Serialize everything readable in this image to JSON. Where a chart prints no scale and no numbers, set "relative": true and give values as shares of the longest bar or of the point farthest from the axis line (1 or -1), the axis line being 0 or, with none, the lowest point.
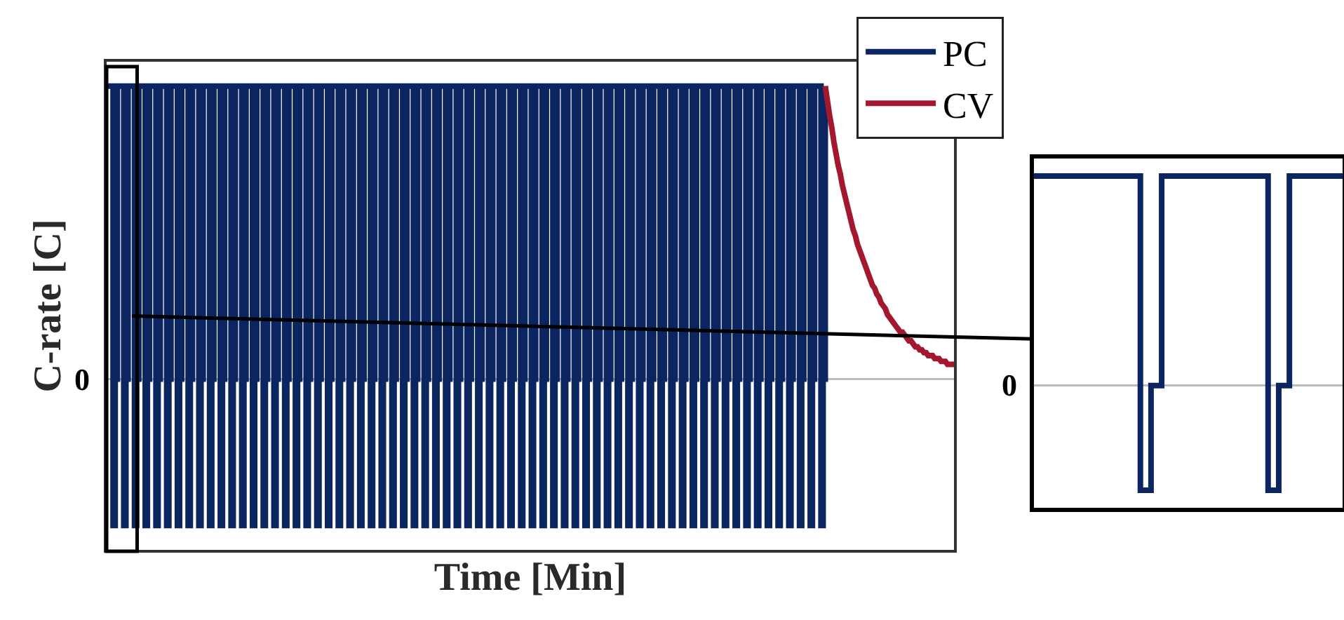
{
  "chart_data": [
    {
      "type": "step",
      "relative": true,
      "xlabel": "Time [Min]",
      "ylabel": "C-rate [C]",
      "annotations": [
        "0"
      ],
      "tick_labels": false,
      "legend": "top right",
      "marker": "none",
      "line_style": "solid",
      "categories": [
        null,
        null,
        null,
        null,
        null,
        null,
        null,
        null,
        null,
        null,
        null,
        null,
        null,
        null,
        null,
        null,
        null,
        null,
        null,
        null,
        null,
        null,
        null,
        null,
        null,
        null,
        null,
        null,
        null,
        null,
        null,
        null,
        null,
        null,
        null,
        null,
        null,
        null,
        null,
        null,
        null,
        null,
        null,
        null,
        null,
        null,
        null,
        null,
        null,
        null,
        null,
        null,
        null,
        null,
        null,
        null,
        null,
        null,
        null,
        null,
        null,
        null,
        null,
        null,
        null,
        null,
        null,
        null,
        null,
        null,
        null,
        null,
        null,
        null,
        null,
        null,
        null,
        null,
        null,
        null,
        null,
        null,
        null,
        null,
        null,
        null,
        null,
        null,
        null,
        null,
        null,
        null,
        null,
        null,
        null,
        null,
        null,
        null,
        null,
        null,
        null,
        null,
        null,
        null,
        null,
        null,
        null,
        null,
        null,
        null,
        null,
        null,
        null,
        null,
        null,
        null,
        null,
        null,
        null,
        null,
        null,
        null,
        null,
        null,
        null,
        null,
        null,
        null,
        null,
        null,
        null,
        null,
        null,
        null,
        null,
        null,
        null,
        null,
        null,
        null,
        null,
        null,
        null,
        null,
        null,
        null,
        null,
        null,
        null,
        null,
        null,
        null,
        null,
        null,
        null,
        null,
        null,
        null,
        null,
        null,
        null,
        null,
        null,
        null,
        null,
        null,
        null,
        null,
        null,
        null,
        null,
        null,
        null,
        null,
        null,
        null,
        null,
        null,
        null,
        null,
        null,
        null,
        null,
        null,
        null,
        null,
        null,
        null,
        null,
        null,
        null,
        null,
        null,
        null,
        null,
        null,
        null,
        null,
        null,
        null,
        null,
        null,
        null,
        null,
        null,
        null,
        null,
        null,
        null,
        null,
        null,
        null,
        null,
        null,
        null,
        null,
        null,
        null,
        null,
        null,
        null,
        null,
        null,
        null,
        null,
        null,
        null,
        null,
        null,
        null,
        null,
        null,
        null,
        null,
        null,
        null,
        null,
        null,
        null,
        null,
        null,
        null,
        null,
        null,
        null,
        null,
        null,
        null,
        null,
        null,
        null,
        null,
        null,
        null,
        null,
        null,
        null,
        null,
        null,
        null,
        null,
        null,
        null,
        null,
        null,
        null,
        null,
        null,
        null,
        null,
        null,
        null,
        null,
        null,
        null,
        null,
        null,
        null,
        null,
        null,
        null,
        null,
        null,
        null,
        null,
        null,
        null,
        null,
        null,
        null,
        null,
        null,
        null,
        null,
        null,
        null,
        null,
        null,
        null,
        null,
        null,
        null,
        null,
        null,
        null,
        null,
        null,
        null,
        null,
        null,
        null,
        null,
        null,
        null,
        null,
        null,
        null,
        null,
        null,
        null,
        null,
        null,
        null,
        null,
        null,
        null,
        null,
        null,
        null,
        null,
        null,
        null,
        null,
        null,
        null,
        null,
        null,
        null,
        null,
        null,
        null,
        null,
        null,
        null,
        null,
        null,
        null,
        null,
        null,
        null,
        null,
        null,
        null,
        null,
        null,
        null,
        null,
        null,
        null,
        null,
        null,
        null,
        null,
        null,
        null,
        null,
        null,
        null,
        null,
        null,
        null,
        null,
        null,
        null,
        null,
        null,
        null,
        null,
        null,
        null,
        null,
        null,
        null,
        null,
        null,
        null,
        null,
        null,
        null,
        null,
        null,
        null,
        null,
        null,
        null,
        null
      ],
      "series": [
        {
          "name": "PC",
          "color": "#0b2560",
          "values": [
            1,
            1,
            1,
            -0.5,
            0,
            1,
            1,
            1,
            -0.5,
            0,
            1,
            1,
            1,
            -0.5,
            0,
            1,
            1,
            1,
            -0.5,
            0,
            1,
            1,
            1,
            -0.5,
            0,
            1,
            1,
            1,
            -0.5,
            0,
            1,
            1,
            1,
            -0.5,
            0,
            1,
            1,
            1,
            -0.5,
            0,
            1,
            1,
            1,
            -0.5,
            0,
            1,
            1,
            1,
            -0.5,
            0,
            1,
            1,
            1,
            -0.5,
            0,
            1,
            1,
            1,
            -0.5,
            0,
            1,
            1,
            1,
            -0.5,
            0,
            1,
            1,
            1,
            -0.5,
            0,
            1,
            1,
            1,
            -0.5,
            0,
            1,
            1,
            1,
            -0.5,
            0,
            1,
            1,
            1,
            -0.5,
            0,
            1,
            1,
            1,
            -0.5,
            0,
            1,
            1,
            1,
            -0.5,
            0,
            1,
            1,
            1,
            -0.5,
            0,
            1,
            1,
            1,
            -0.5,
            0,
            1,
            1,
            1,
            -0.5,
            0,
            1,
            1,
            1,
            -0.5,
            0,
            1,
            1,
            1,
            -0.5,
            0,
            1,
            1,
            1,
            -0.5,
            0,
            1,
            1,
            1,
            -0.5,
            0,
            1,
            1,
            1,
            -0.5,
            0,
            1,
            1,
            1,
            -0.5,
            0,
            1,
            1,
            1,
            -0.5,
            0,
            1,
            1,
            1,
            -0.5,
            0,
            1,
            1,
            1,
            -0.5,
            0,
            1,
            1,
            1,
            -0.5,
            0,
            1,
            1,
            1,
            -0.5,
            0,
            1,
            1,
            1,
            -0.5,
            0,
            1,
            1,
            1,
            -0.5,
            0,
            1,
            1,
            1,
            -0.5,
            0,
            1,
            1,
            1,
            -0.5,
            0,
            1,
            1,
            1,
            -0.5,
            0,
            1,
            1,
            1,
            -0.5,
            0,
            1,
            1,
            1,
            -0.5,
            0,
            1,
            1,
            1,
            -0.5,
            0,
            1,
            1,
            1,
            -0.5,
            0,
            1,
            1,
            1,
            -0.5,
            0,
            1,
            1,
            1,
            -0.5,
            0,
            1,
            1,
            1,
            -0.5,
            0,
            1,
            1,
            1,
            -0.5,
            0,
            1,
            1,
            1,
            -0.5,
            0,
            1,
            1,
            1,
            -0.5,
            0,
            1,
            1,
            1,
            -0.5,
            0,
            1,
            1,
            1,
            -0.5,
            0,
            1,
            1,
            1,
            -0.5,
            0,
            1,
            1,
            1,
            -0.5,
            0,
            1,
            1,
            1,
            -0.5,
            0,
            1,
            1,
            1,
            -0.5,
            0,
            1,
            1,
            1,
            -0.5,
            0,
            1,
            1,
            1,
            -0.5,
            0,
            1,
            1,
            1,
            -0.5,
            0,
            1,
            1,
            1,
            -0.5,
            0,
            1,
            1,
            1,
            -0.5,
            0,
            1,
            1,
            1,
            -0.5,
            0,
            1,
            1,
            1,
            -0.5,
            0,
            1,
            1,
            1,
            -0.5,
            0,
            1,
            1,
            1,
            -0.5,
            0,
            1,
            1,
            1,
            -0.5,
            0,
            1,
            1,
            1,
            -0.5,
            0,
            1,
            1,
            1,
            -0.5,
            0,
            1,
            1,
            1,
            -0.5,
            0,
            1,
            null,
            null,
            null,
            null,
            null,
            null,
            null,
            null,
            null,
            null,
            null,
            null,
            null,
            null,
            null,
            null,
            null,
            null,
            null,
            null,
            null,
            null,
            null,
            null,
            null,
            null,
            null,
            null,
            null,
            null,
            null,
            null,
            null,
            null,
            null,
            null,
            null,
            null,
            null,
            null,
            null,
            null,
            null,
            null,
            null,
            null,
            null,
            null,
            null,
            null,
            null,
            null,
            null,
            null,
            null,
            null,
            null,
            null,
            null,
            null
          ]
        },
        {
          "name": "CV",
          "color": "#a3182f",
          "type": "line",
          "values": [
            null,
            null,
            null,
            null,
            null,
            null,
            null,
            null,
            null,
            null,
            null,
            null,
            null,
            null,
            null,
            null,
            null,
            null,
            null,
            null,
            null,
            null,
            null,
            null,
            null,
            null,
            null,
            null,
            null,
            null,
            null,
            null,
            null,
            null,
            null,
            null,
            null,
            null,
            null,
            null,
            null,
            null,
            null,
            null,
            null,
            null,
            null,
            null,
            null,
            null,
            null,
            null,
            null,
            null,
            null,
            null,
            null,
            null,
            null,
            null,
            null,
            null,
            null,
            null,
            null,
            null,
            null,
            null,
            null,
            null,
            null,
            null,
            null,
            null,
            null,
            null,
            null,
            null,
            null,
            null,
            null,
            null,
            null,
            null,
            null,
            null,
            null,
            null,
            null,
            null,
            null,
            null,
            null,
            null,
            null,
            null,
            null,
            null,
            null,
            null,
            null,
            null,
            null,
            null,
            null,
            null,
            null,
            null,
            null,
            null,
            null,
            null,
            null,
            null,
            null,
            null,
            null,
            null,
            null,
            null,
            null,
            null,
            null,
            null,
            null,
            null,
            null,
            null,
            null,
            null,
            null,
            null,
            null,
            null,
            null,
            null,
            null,
            null,
            null,
            null,
            null,
            null,
            null,
            null,
            null,
            null,
            null,
            null,
            null,
            null,
            null,
            null,
            null,
            null,
            null,
            null,
            null,
            null,
            null,
            null,
            null,
            null,
            null,
            null,
            null,
            null,
            null,
            null,
            null,
            null,
            null,
            null,
            null,
            null,
            null,
            null,
            null,
            null,
            null,
            null,
            null,
            null,
            null,
            null,
            null,
            null,
            null,
            null,
            null,
            null,
            null,
            null,
            null,
            null,
            null,
            null,
            null,
            null,
            null,
            null,
            null,
            null,
            null,
            null,
            null,
            null,
            null,
            null,
            null,
            null,
            null,
            null,
            null,
            null,
            null,
            null,
            null,
            null,
            null,
            null,
            null,
            null,
            null,
            null,
            null,
            null,
            null,
            null,
            null,
            null,
            null,
            null,
            null,
            null,
            null,
            null,
            null,
            null,
            null,
            null,
            null,
            null,
            null,
            null,
            null,
            null,
            null,
            null,
            null,
            null,
            null,
            null,
            null,
            null,
            null,
            null,
            null,
            null,
            null,
            null,
            null,
            null,
            null,
            null,
            null,
            null,
            null,
            null,
            null,
            null,
            null,
            null,
            null,
            null,
            null,
            null,
            null,
            null,
            null,
            null,
            null,
            null,
            null,
            null,
            null,
            null,
            null,
            null,
            null,
            null,
            null,
            null,
            null,
            null,
            null,
            null,
            null,
            null,
            null,
            null,
            null,
            null,
            null,
            null,
            null,
            null,
            null,
            null,
            null,
            null,
            null,
            null,
            null,
            null,
            null,
            null,
            null,
            null,
            null,
            null,
            null,
            null,
            null,
            null,
            null,
            null,
            null,
            null,
            null,
            null,
            null,
            null,
            null,
            null,
            null,
            1,
            0.95,
            0.9,
            0.86,
            0.81,
            0.77,
            0.73,
            0.7,
            0.66,
            0.63,
            0.6,
            0.57,
            0.54,
            0.51,
            0.49,
            0.46,
            0.44,
            0.42,
            0.4,
            0.38,
            0.36,
            0.34,
            0.32,
            0.31,
            0.29,
            0.28,
            0.26,
            0.25,
            0.24,
            0.22,
            0.21,
            0.2,
            0.19,
            0.18,
            0.17,
            0.16,
            0.16,
            0.15,
            0.14,
            0.13,
            0.13,
            0.12,
            0.11,
            0.11,
            0.1,
            0.1,
            0.09,
            0.09,
            0.08,
            0.08,
            0.08,
            0.07,
            0.07,
            0.07,
            0.06,
            0.06,
            0.06,
            0.05,
            0.05,
            0.05,
            0.05
          ]
        }
      ]
    },
    {
      "type": "step",
      "relative": true,
      "annotations": [
        "0"
      ],
      "tick_labels": false,
      "marker": "none",
      "line_style": "solid",
      "categories": [
        null,
        null,
        null,
        null,
        null,
        null,
        null,
        null,
        null,
        null,
        null,
        null,
        null,
        null,
        null,
        null,
        null,
        null,
        null,
        null,
        null,
        null,
        null,
        null,
        null,
        null,
        null,
        null,
        null,
        null
      ],
      "series": [
        {
          "color": "#0b2560",
          "values": [
            1,
            1,
            1,
            1,
            1,
            1,
            1,
            1,
            1,
            1,
            -0.5,
            0,
            1,
            1,
            1,
            1,
            1,
            1,
            1,
            1,
            1,
            1,
            -0.5,
            0,
            1,
            1,
            1,
            1,
            1,
            1
          ]
        }
      ]
    }
  ]
}
